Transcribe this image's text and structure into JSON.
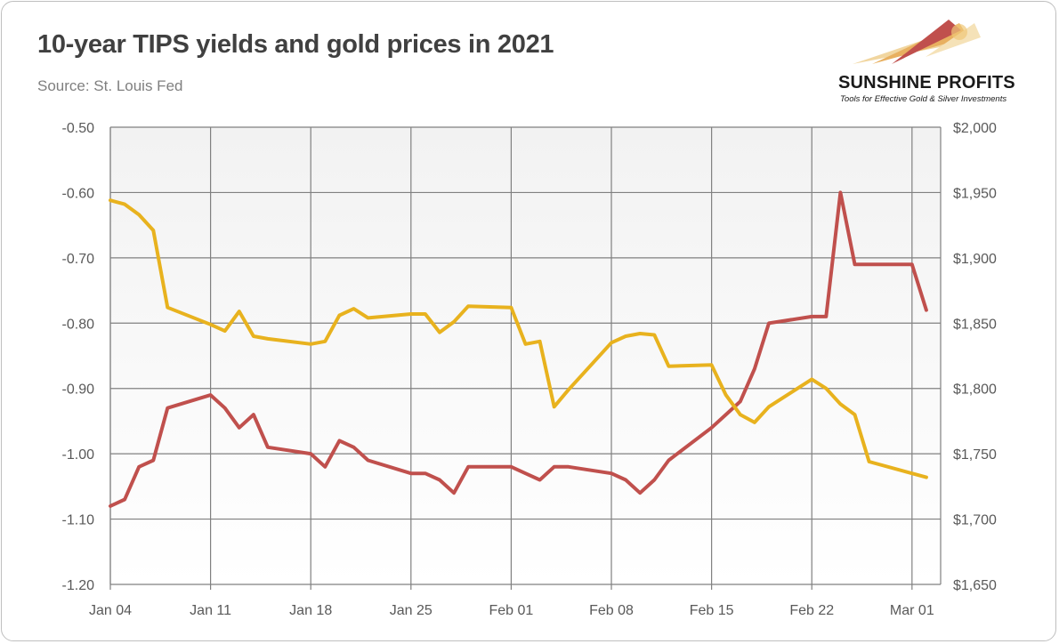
{
  "header": {
    "title": "10-year TIPS yields and gold prices in 2021",
    "source": "Source: St. Louis Fed"
  },
  "logo": {
    "name": "SUNSHINE PROFITS",
    "tagline": "Tools for Effective Gold & Silver Investments"
  },
  "colors": {
    "tips": "#c0504d",
    "gold": "#e8b21e",
    "grid": "#808080",
    "plot_top": "#f2f2f2",
    "plot_bottom": "#ffffff"
  },
  "chart_data": {
    "type": "line",
    "title": "10-year TIPS yields and gold prices in 2021",
    "x_start": "Jan 04",
    "x_end": "Mar 03",
    "x_ticks": [
      "Jan 04",
      "Jan 11",
      "Jan 18",
      "Jan 25",
      "Feb 01",
      "Feb 08",
      "Feb 15",
      "Feb 22",
      "Mar 01"
    ],
    "y_left": {
      "range": [
        -1.2,
        -0.5
      ],
      "ticks": [
        -0.5,
        -0.6,
        -0.7,
        -0.8,
        -0.9,
        -1.0,
        -1.1,
        -1.2
      ],
      "tick_labels": [
        "-0.50",
        "-0.60",
        "-0.70",
        "-0.80",
        "-0.90",
        "-1.00",
        "-1.10",
        "-1.20"
      ]
    },
    "y_right": {
      "range": [
        1650,
        2000
      ],
      "ticks": [
        2000,
        1950,
        1900,
        1850,
        1800,
        1750,
        1700,
        1650
      ],
      "tick_labels": [
        "$2,000",
        "$1,950",
        "$1,900",
        "$1,850",
        "$1,800",
        "$1,750",
        "$1,700",
        "$1,650"
      ]
    },
    "grid": true,
    "series": [
      {
        "key": "tips",
        "axis": "left",
        "x": [
          "Jan 04",
          "Jan 05",
          "Jan 06",
          "Jan 07",
          "Jan 08",
          "Jan 11",
          "Jan 12",
          "Jan 13",
          "Jan 14",
          "Jan 15",
          "Jan 18",
          "Jan 19",
          "Jan 20",
          "Jan 21",
          "Jan 22",
          "Jan 25",
          "Jan 26",
          "Jan 27",
          "Jan 28",
          "Jan 29",
          "Feb 01",
          "Feb 02",
          "Feb 03",
          "Feb 04",
          "Feb 05",
          "Feb 08",
          "Feb 09",
          "Feb 10",
          "Feb 11",
          "Feb 12",
          "Feb 15",
          "Feb 16",
          "Feb 17",
          "Feb 18",
          "Feb 19",
          "Feb 22",
          "Feb 23",
          "Feb 24",
          "Feb 25",
          "Feb 26",
          "Mar 01",
          "Mar 02"
        ],
        "values": [
          -1.08,
          -1.07,
          -1.02,
          -1.01,
          -0.93,
          -0.91,
          -0.93,
          -0.96,
          -0.94,
          -0.99,
          -1.0,
          -1.02,
          -0.98,
          -0.99,
          -1.01,
          -1.03,
          -1.03,
          -1.04,
          -1.06,
          -1.02,
          -1.02,
          -1.03,
          -1.04,
          -1.02,
          -1.02,
          -1.03,
          -1.04,
          -1.06,
          -1.04,
          -1.01,
          -0.96,
          -0.94,
          -0.92,
          -0.87,
          -0.8,
          -0.79,
          -0.79,
          -0.6,
          -0.71,
          -0.71,
          -0.71,
          -0.78
        ]
      },
      {
        "key": "gold",
        "axis": "right",
        "x": [
          "Jan 04",
          "Jan 05",
          "Jan 06",
          "Jan 07",
          "Jan 08",
          "Jan 11",
          "Jan 12",
          "Jan 13",
          "Jan 14",
          "Jan 15",
          "Jan 18",
          "Jan 19",
          "Jan 20",
          "Jan 21",
          "Jan 22",
          "Jan 25",
          "Jan 26",
          "Jan 27",
          "Jan 28",
          "Jan 29",
          "Feb 01",
          "Feb 02",
          "Feb 03",
          "Feb 04",
          "Feb 05",
          "Feb 08",
          "Feb 09",
          "Feb 10",
          "Feb 11",
          "Feb 12",
          "Feb 15",
          "Feb 16",
          "Feb 17",
          "Feb 18",
          "Feb 19",
          "Feb 22",
          "Feb 23",
          "Feb 24",
          "Feb 25",
          "Feb 26",
          "Mar 01",
          "Mar 02"
        ],
        "values": [
          1944,
          1941,
          1933,
          1921,
          1862,
          1849,
          1844,
          1859,
          1840,
          1838,
          1834,
          1836,
          1856,
          1861,
          1854,
          1857,
          1857,
          1843,
          1851,
          1863,
          1862,
          1834,
          1836,
          1786,
          1799,
          1835,
          1840,
          1842,
          1841,
          1817,
          1818,
          1795,
          1780,
          1774,
          1786,
          1807,
          1800,
          1788,
          1780,
          1744,
          1735,
          1732
        ]
      }
    ]
  }
}
